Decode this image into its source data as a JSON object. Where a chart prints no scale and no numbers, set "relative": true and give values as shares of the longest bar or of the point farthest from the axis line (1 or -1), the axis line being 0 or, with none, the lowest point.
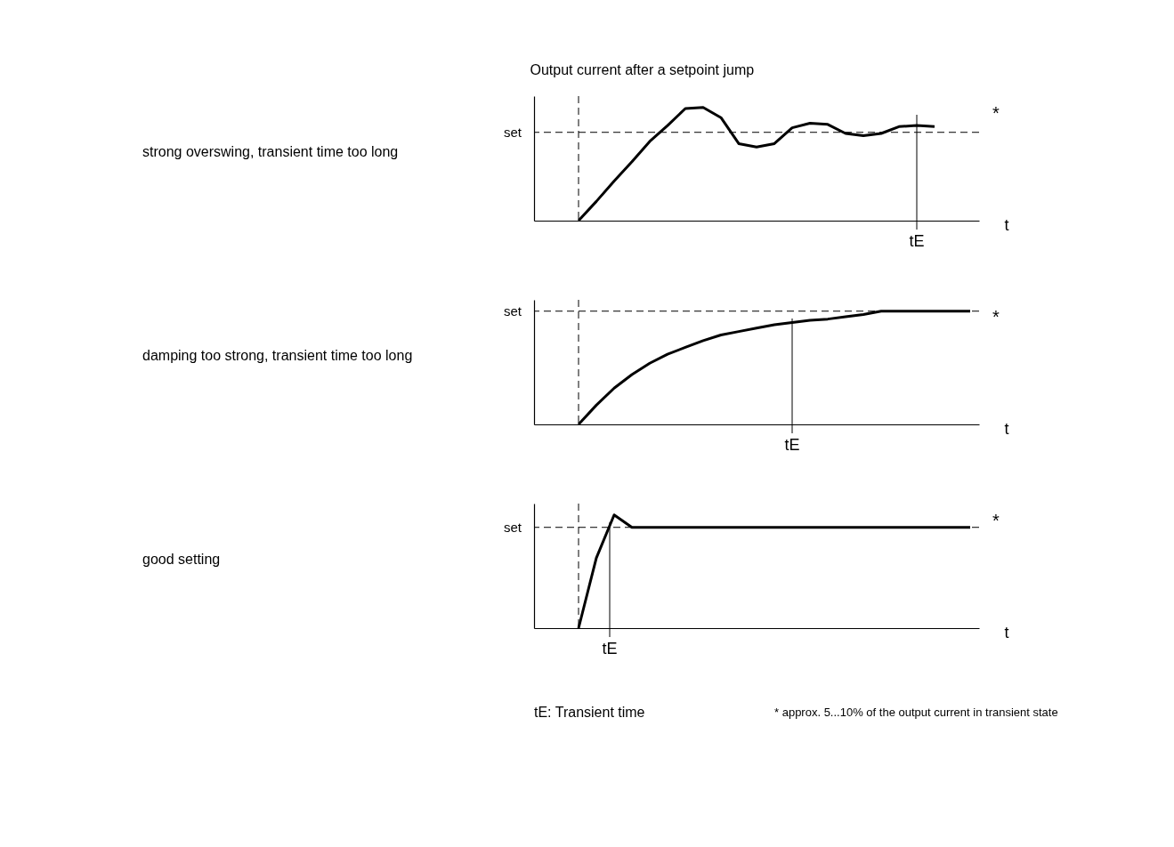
{
  "chart_data": [
    {
      "type": "line",
      "relative": true,
      "ylabel": "Output current after a setpoint jump",
      "xlabel": "t",
      "categories": [
        null,
        null,
        null,
        null,
        null,
        null,
        null,
        null,
        null,
        null,
        null,
        null,
        null,
        null,
        null,
        null,
        null,
        null,
        null,
        null,
        null,
        null,
        null,
        null,
        null
      ],
      "series": [
        {
          "color": "#000000",
          "values": [
            null,
            null,
            0,
            0.17,
            0.35,
            0.52,
            0.7,
            0.84,
            0.99,
            1.0,
            0.91,
            0.68,
            0.65,
            0.68,
            0.82,
            0.86,
            0.85,
            0.77,
            0.75,
            0.77,
            0.83,
            0.84,
            0.83,
            null,
            null
          ]
        }
      ],
      "ref_lines": [
        {
          "axis": "y",
          "value": 0.78,
          "label": "set",
          "line_style": "dashed"
        }
      ],
      "annotations": [
        "strong overswing, transient time too long",
        "*",
        "tE"
      ],
      "marker": "none",
      "line_style": "solid",
      "grid": false
    },
    {
      "type": "line",
      "relative": true,
      "xlabel": "t",
      "categories": [
        null,
        null,
        null,
        null,
        null,
        null,
        null,
        null,
        null,
        null,
        null,
        null,
        null,
        null,
        null,
        null,
        null,
        null,
        null,
        null,
        null,
        null,
        null,
        null,
        null
      ],
      "series": [
        {
          "color": "#000000",
          "values": [
            null,
            null,
            0,
            0.17,
            0.32,
            0.44,
            0.54,
            0.62,
            0.68,
            0.74,
            0.79,
            0.82,
            0.85,
            0.88,
            0.9,
            0.92,
            0.93,
            0.95,
            0.97,
            1.0,
            1.0,
            1.0,
            1.0,
            1.0,
            1.0
          ]
        }
      ],
      "ref_lines": [
        {
          "axis": "y",
          "value": 1.0,
          "label": "set",
          "line_style": "dashed"
        }
      ],
      "annotations": [
        "damping too strong, transient time too long",
        "*",
        "tE"
      ],
      "marker": "none",
      "line_style": "solid",
      "grid": false
    },
    {
      "type": "line",
      "relative": true,
      "xlabel": "t",
      "categories": [
        null,
        null,
        null,
        null,
        null,
        null,
        null,
        null,
        null,
        null,
        null,
        null,
        null,
        null,
        null,
        null,
        null,
        null,
        null,
        null,
        null,
        null,
        null,
        null,
        null
      ],
      "series": [
        {
          "color": "#000000",
          "values": [
            null,
            null,
            0,
            0.62,
            1.0,
            0.89,
            0.89,
            0.89,
            0.89,
            0.89,
            0.89,
            0.89,
            0.89,
            0.89,
            0.89,
            0.89,
            0.89,
            0.89,
            0.89,
            0.89,
            0.89,
            0.89,
            0.89,
            0.89,
            0.89
          ]
        }
      ],
      "ref_lines": [
        {
          "axis": "y",
          "value": 0.89,
          "label": "set",
          "line_style": "dashed"
        }
      ],
      "annotations": [
        "good setting",
        "*",
        "tE",
        "tE: Transient time",
        "* approx. 5...10% of the output current in transient state"
      ],
      "marker": "none",
      "line_style": "solid",
      "grid": false
    }
  ]
}
